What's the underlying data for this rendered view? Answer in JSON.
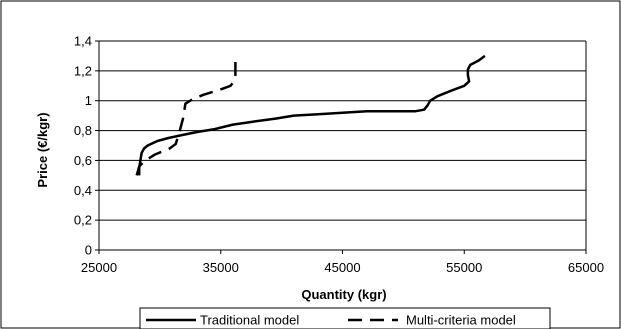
{
  "chart_data": {
    "type": "line",
    "xlabel": "Quantity (kgr)",
    "ylabel": "Price (€/kgr)",
    "xlim": [
      25000,
      65000
    ],
    "ylim": [
      0,
      1.4
    ],
    "x_ticks": [
      "25000",
      "35000",
      "45000",
      "55000",
      "65000"
    ],
    "y_ticks": [
      "0",
      "0,2",
      "0,4",
      "0,6",
      "0,8",
      "1",
      "1,2",
      "1,4"
    ],
    "grid": "horizontal",
    "legend_position": "bottom",
    "series": [
      {
        "name": "Traditional model",
        "style": "solid",
        "color": "#000000",
        "points": [
          [
            28300,
            0.5
          ],
          [
            28300,
            0.55
          ],
          [
            28400,
            0.6
          ],
          [
            28500,
            0.65
          ],
          [
            28700,
            0.68
          ],
          [
            29000,
            0.7
          ],
          [
            29800,
            0.73
          ],
          [
            30700,
            0.75
          ],
          [
            31800,
            0.77
          ],
          [
            33000,
            0.79
          ],
          [
            34500,
            0.81
          ],
          [
            36000,
            0.84
          ],
          [
            37700,
            0.86
          ],
          [
            39500,
            0.88
          ],
          [
            41000,
            0.9
          ],
          [
            43000,
            0.91
          ],
          [
            45000,
            0.92
          ],
          [
            47000,
            0.93
          ],
          [
            49000,
            0.93
          ],
          [
            51000,
            0.93
          ],
          [
            51700,
            0.94
          ],
          [
            52000,
            0.97
          ],
          [
            52200,
            1.0
          ],
          [
            52800,
            1.03
          ],
          [
            54000,
            1.07
          ],
          [
            55000,
            1.1
          ],
          [
            55400,
            1.13
          ],
          [
            55300,
            1.17
          ],
          [
            55300,
            1.21
          ],
          [
            55500,
            1.24
          ],
          [
            56200,
            1.27
          ],
          [
            56700,
            1.3
          ]
        ]
      },
      {
        "name": "Multi-criteria model",
        "style": "dashed",
        "color": "#000000",
        "points": [
          [
            28100,
            0.5
          ],
          [
            28200,
            0.53
          ],
          [
            28300,
            0.56
          ],
          [
            28800,
            0.6
          ],
          [
            29600,
            0.64
          ],
          [
            30800,
            0.68
          ],
          [
            31300,
            0.71
          ],
          [
            31500,
            0.76
          ],
          [
            31700,
            0.82
          ],
          [
            31900,
            0.88
          ],
          [
            32000,
            0.93
          ],
          [
            32100,
            0.98
          ],
          [
            32700,
            1.01
          ],
          [
            33600,
            1.04
          ],
          [
            34800,
            1.07
          ],
          [
            35800,
            1.1
          ],
          [
            36100,
            1.13
          ],
          [
            36200,
            1.17
          ],
          [
            36200,
            1.21
          ],
          [
            36200,
            1.25
          ],
          [
            36200,
            1.3
          ]
        ]
      }
    ]
  }
}
